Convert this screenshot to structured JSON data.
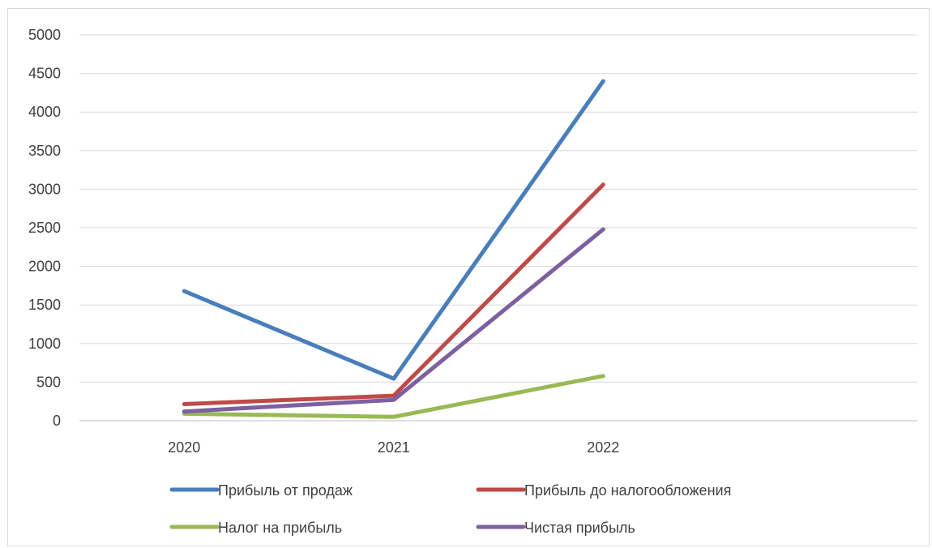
{
  "chart_data": {
    "type": "line",
    "title": "",
    "xlabel": "",
    "ylabel": "",
    "categories": [
      "2020",
      "2021",
      "2022"
    ],
    "x_slots": 4,
    "ylim": [
      0,
      5000
    ],
    "yticks": [
      0,
      500,
      1000,
      1500,
      2000,
      2500,
      3000,
      3500,
      4000,
      4500,
      5000
    ],
    "grid": true,
    "legend_position": "bottom",
    "series": [
      {
        "name": "Прибыль от продаж",
        "color": "#4a7ebb",
        "values": [
          1680,
          545,
          4400
        ]
      },
      {
        "name": "Прибыль до налогообложения",
        "color": "#be4b48",
        "values": [
          215,
          325,
          3060
        ]
      },
      {
        "name": "Налог на прибыль",
        "color": "#98b954",
        "values": [
          90,
          50,
          580
        ]
      },
      {
        "name": "Чистая прибыль",
        "color": "#7d60a0",
        "values": [
          120,
          270,
          2480
        ]
      }
    ]
  }
}
